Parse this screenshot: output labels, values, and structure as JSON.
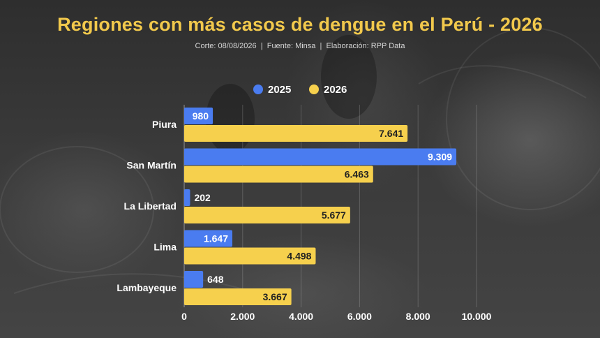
{
  "title": "Regiones con más casos de dengue en el Perú - 2026",
  "source": {
    "cut": "Corte: 08/08/2026",
    "sep1": "|",
    "source": "Fuente: Minsa",
    "sep2": "|",
    "made_by": "Elaboración: RPP Data"
  },
  "colors": {
    "series_2025": "#4a7cf0",
    "series_2026": "#f6d04d",
    "title": "#f2c94c",
    "text": "#ffffff"
  },
  "chart_data": {
    "type": "bar",
    "orientation": "horizontal",
    "title": "Regiones con más casos de dengue en el Perú - 2026",
    "categories": [
      "Piura",
      "San Martín",
      "La Libertad",
      "Lima",
      "Lambayeque"
    ],
    "series": [
      {
        "name": "2025",
        "values": [
          980,
          9309,
          202,
          1647,
          648
        ],
        "labels": [
          "980",
          "9.309",
          "202",
          "1.647",
          "648"
        ]
      },
      {
        "name": "2026",
        "values": [
          7641,
          6463,
          5677,
          4498,
          3667
        ],
        "labels": [
          "7.641",
          "6.463",
          "5.677",
          "4.498",
          "3.667"
        ]
      }
    ],
    "xlim": [
      0,
      10000
    ],
    "ticks": [
      0,
      2000,
      4000,
      6000,
      8000,
      10000
    ],
    "tick_labels": [
      "0",
      "2.000",
      "4.000",
      "6.000",
      "8.000",
      "10.000"
    ],
    "legend_position": "top-center",
    "grid": true
  }
}
